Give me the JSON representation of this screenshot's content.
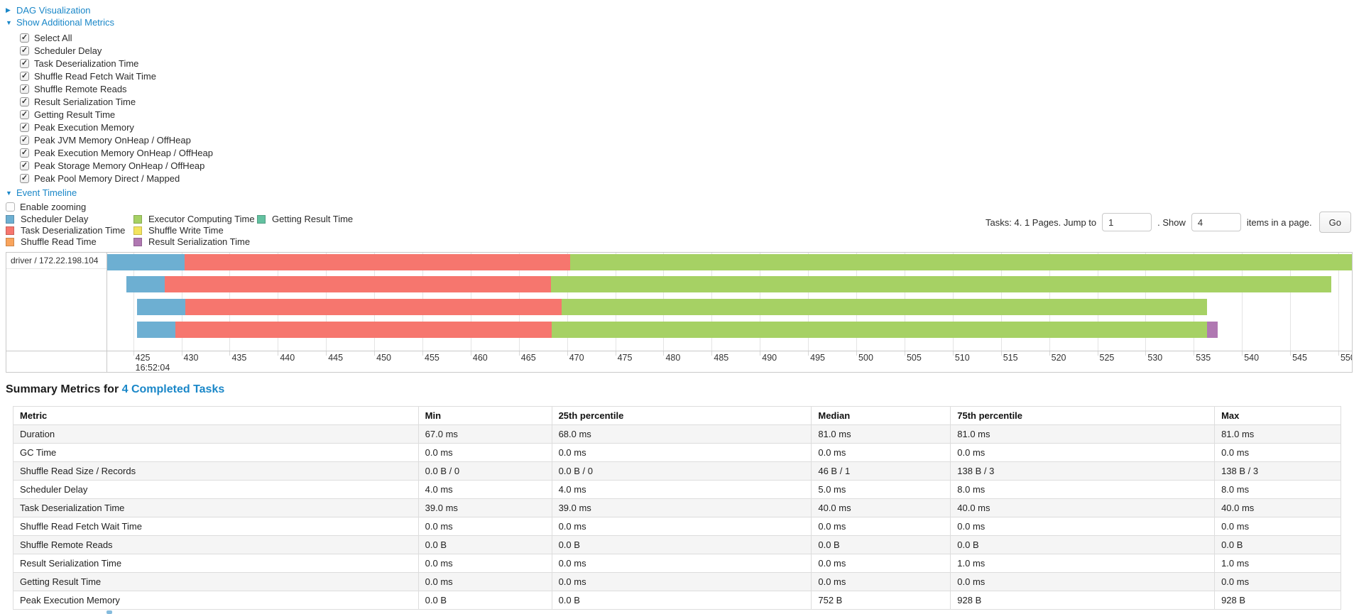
{
  "colors": {
    "link": "#1a87c8",
    "scheduler_delay": "#6DAFD2",
    "task_deserialization": "#F6766E",
    "shuffle_read": "#F9A45C",
    "executor_computing": "#A6D164",
    "shuffle_write": "#F3E45F",
    "result_serialization": "#B078B2",
    "getting_result": "#63C1A0"
  },
  "icons": {
    "collapsed_arrow": "▶",
    "expanded_arrow": "▼",
    "checkmark": "✓"
  },
  "metrics_panel": {
    "dag_label": "DAG Visualization",
    "metrics_label": "Show Additional Metrics",
    "checkboxes": [
      "Select All",
      "Scheduler Delay",
      "Task Deserialization Time",
      "Shuffle Read Fetch Wait Time",
      "Shuffle Remote Reads",
      "Result Serialization Time",
      "Getting Result Time",
      "Peak Execution Memory",
      "Peak JVM Memory OnHeap / OffHeap",
      "Peak Execution Memory OnHeap / OffHeap",
      "Peak Storage Memory OnHeap / OffHeap",
      "Peak Pool Memory Direct / Mapped"
    ],
    "event_timeline_label": "Event Timeline",
    "enable_zooming_label": "Enable zooming"
  },
  "legend": {
    "columns": [
      [
        {
          "label": "Scheduler Delay",
          "color": "scheduler_delay"
        },
        {
          "label": "Task Deserialization Time",
          "color": "task_deserialization"
        },
        {
          "label": "Shuffle Read Time",
          "color": "shuffle_read"
        }
      ],
      [
        {
          "label": "Executor Computing Time",
          "color": "executor_computing"
        },
        {
          "label": "Shuffle Write Time",
          "color": "shuffle_write"
        },
        {
          "label": "Result Serialization Time",
          "color": "result_serialization"
        }
      ],
      [
        {
          "label": "Getting Result Time",
          "color": "getting_result"
        }
      ]
    ]
  },
  "pagination": {
    "tasks_text": "Tasks: 4. 1 Pages. Jump to",
    "jump_value": "1",
    "show_text": ". Show",
    "show_value": "4",
    "items_text": "items in a page.",
    "go_label": "Go"
  },
  "timeline": {
    "group_label": "driver / 172.22.198.104",
    "axis": {
      "min": 422.3,
      "max": 551.4,
      "tick_start": 425,
      "tick_end": 550,
      "tick_step": 5,
      "time_label": "16:52:04"
    },
    "tasks": [
      {
        "segments": [
          {
            "type": "scheduler_delay",
            "start": 422.3,
            "end": 430.3
          },
          {
            "type": "task_deserialization",
            "start": 430.3,
            "end": 470.3
          },
          {
            "type": "executor_computing",
            "start": 470.3,
            "end": 551.4
          }
        ]
      },
      {
        "segments": [
          {
            "type": "scheduler_delay",
            "start": 424.3,
            "end": 428.3
          },
          {
            "type": "task_deserialization",
            "start": 428.3,
            "end": 468.3
          },
          {
            "type": "executor_computing",
            "start": 468.3,
            "end": 549.3
          }
        ]
      },
      {
        "segments": [
          {
            "type": "scheduler_delay",
            "start": 425.4,
            "end": 430.4
          },
          {
            "type": "task_deserialization",
            "start": 430.4,
            "end": 469.4
          },
          {
            "type": "executor_computing",
            "start": 469.4,
            "end": 536.4
          }
        ]
      },
      {
        "segments": [
          {
            "type": "scheduler_delay",
            "start": 425.4,
            "end": 429.4
          },
          {
            "type": "task_deserialization",
            "start": 429.4,
            "end": 468.4
          },
          {
            "type": "executor_computing",
            "start": 468.4,
            "end": 536.4
          },
          {
            "type": "result_serialization",
            "start": 536.4,
            "end": 537.5
          }
        ]
      }
    ]
  },
  "summary": {
    "title_prefix": "Summary Metrics for ",
    "title_link": "4 Completed Tasks",
    "columns": [
      "Metric",
      "Min",
      "25th percentile",
      "Median",
      "75th percentile",
      "Max"
    ],
    "rows": [
      [
        "Duration",
        "67.0 ms",
        "68.0 ms",
        "81.0 ms",
        "81.0 ms",
        "81.0 ms"
      ],
      [
        "GC Time",
        "0.0 ms",
        "0.0 ms",
        "0.0 ms",
        "0.0 ms",
        "0.0 ms"
      ],
      [
        "Shuffle Read Size / Records",
        "0.0 B / 0",
        "0.0 B / 0",
        "46 B / 1",
        "138 B / 3",
        "138 B / 3"
      ],
      [
        "Scheduler Delay",
        "4.0 ms",
        "4.0 ms",
        "5.0 ms",
        "8.0 ms",
        "8.0 ms"
      ],
      [
        "Task Deserialization Time",
        "39.0 ms",
        "39.0 ms",
        "40.0 ms",
        "40.0 ms",
        "40.0 ms"
      ],
      [
        "Shuffle Read Fetch Wait Time",
        "0.0 ms",
        "0.0 ms",
        "0.0 ms",
        "0.0 ms",
        "0.0 ms"
      ],
      [
        "Shuffle Remote Reads",
        "0.0 B",
        "0.0 B",
        "0.0 B",
        "0.0 B",
        "0.0 B"
      ],
      [
        "Result Serialization Time",
        "0.0 ms",
        "0.0 ms",
        "0.0 ms",
        "1.0 ms",
        "1.0 ms"
      ],
      [
        "Getting Result Time",
        "0.0 ms",
        "0.0 ms",
        "0.0 ms",
        "0.0 ms",
        "0.0 ms"
      ],
      [
        "Peak Execution Memory",
        "0.0 B",
        "0.0 B",
        "752 B",
        "928 B",
        "928 B"
      ]
    ]
  }
}
